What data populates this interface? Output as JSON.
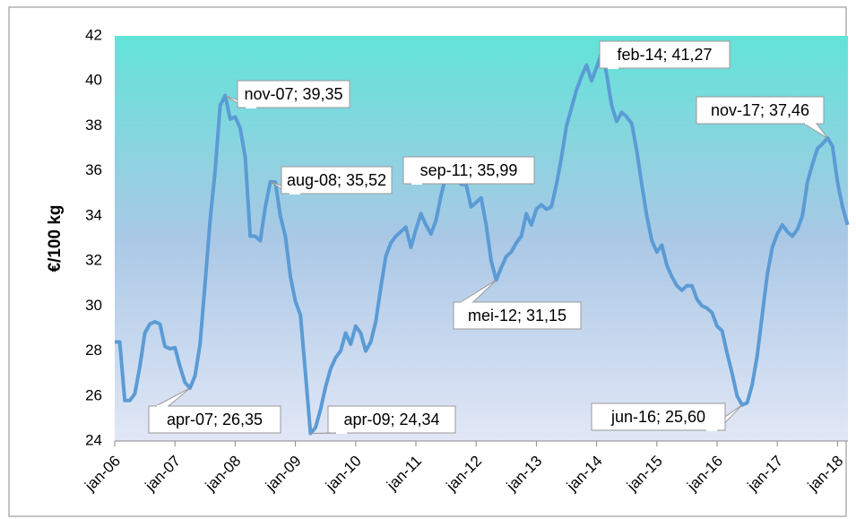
{
  "chart_data": {
    "type": "line",
    "y_label": "€/100 kg",
    "color": "#5b9bd5",
    "categories": [
      "jan-06",
      null,
      null,
      null,
      null,
      null,
      null,
      null,
      null,
      null,
      null,
      null,
      "jan-07",
      null,
      null,
      null,
      null,
      null,
      null,
      null,
      null,
      null,
      null,
      null,
      "jan-08",
      null,
      null,
      null,
      null,
      null,
      null,
      null,
      null,
      null,
      null,
      null,
      "jan-09",
      null,
      null,
      null,
      null,
      null,
      null,
      null,
      null,
      null,
      null,
      null,
      "jan-10",
      null,
      null,
      null,
      null,
      null,
      null,
      null,
      null,
      null,
      null,
      null,
      "jan-11",
      null,
      null,
      null,
      null,
      null,
      null,
      null,
      null,
      null,
      null,
      null,
      "jan-12",
      null,
      null,
      null,
      null,
      null,
      null,
      null,
      null,
      null,
      null,
      null,
      "jan-13",
      null,
      null,
      null,
      null,
      null,
      null,
      null,
      null,
      null,
      null,
      null,
      "jan-14",
      null,
      null,
      null,
      null,
      null,
      null,
      null,
      null,
      null,
      null,
      null,
      "jan-15",
      null,
      null,
      null,
      null,
      null,
      null,
      null,
      null,
      null,
      null,
      null,
      "jan-16",
      null,
      null,
      null,
      null,
      null,
      null,
      null,
      null,
      null,
      null,
      null,
      "jan-17",
      null,
      null,
      null,
      null,
      null,
      null,
      null,
      null,
      null,
      null,
      null,
      "jan-18",
      null,
      null
    ],
    "values": [
      28.4,
      28.4,
      25.8,
      25.8,
      26.1,
      27.3,
      28.8,
      29.2,
      29.3,
      29.2,
      28.2,
      28.1,
      28.15,
      27.3,
      26.6,
      26.35,
      26.9,
      28.3,
      31.0,
      33.8,
      36.0,
      38.9,
      39.35,
      38.3,
      38.4,
      37.9,
      36.6,
      33.1,
      33.1,
      32.9,
      34.4,
      35.52,
      35.5,
      34.0,
      33.1,
      31.3,
      30.2,
      29.6,
      27.0,
      24.34,
      24.6,
      25.4,
      26.4,
      27.2,
      27.7,
      28.0,
      28.8,
      28.3,
      29.1,
      28.8,
      28.0,
      28.4,
      29.3,
      30.8,
      32.2,
      32.8,
      33.1,
      33.3,
      33.5,
      32.6,
      33.4,
      34.1,
      33.6,
      33.2,
      33.8,
      34.9,
      35.8,
      35.9,
      35.99,
      35.4,
      35.4,
      34.4,
      34.6,
      34.8,
      33.6,
      32.0,
      31.15,
      31.7,
      32.2,
      32.4,
      32.8,
      33.1,
      34.1,
      33.6,
      34.3,
      34.5,
      34.3,
      34.4,
      35.4,
      36.6,
      38.0,
      38.8,
      39.6,
      40.2,
      40.7,
      40.0,
      40.6,
      41.27,
      40.3,
      38.9,
      38.2,
      38.6,
      38.4,
      38.1,
      36.9,
      35.4,
      34.0,
      32.9,
      32.4,
      32.7,
      31.8,
      31.3,
      30.9,
      30.7,
      30.9,
      30.9,
      30.3,
      30.0,
      29.9,
      29.7,
      29.1,
      28.9,
      27.9,
      27.0,
      26.0,
      25.6,
      25.7,
      26.5,
      27.8,
      29.6,
      31.4,
      32.6,
      33.2,
      33.6,
      33.3,
      33.1,
      33.4,
      34.0,
      35.5,
      36.3,
      37.0,
      37.2,
      37.46,
      37.1,
      35.5,
      34.4,
      33.6
    ],
    "ylim": [
      24,
      42
    ],
    "yticks": [
      24,
      26,
      28,
      30,
      32,
      34,
      36,
      38,
      40,
      42
    ],
    "grid": false,
    "annotations": [
      "nov-07; 39,35",
      "aug-08; 35,52",
      "apr-07; 26,35",
      "apr-09; 24,34",
      "sep-11; 35,99",
      "mei-12; 31,15",
      "feb-14; 41,27",
      "jun-16; 25,60",
      "nov-17; 37,46"
    ]
  }
}
